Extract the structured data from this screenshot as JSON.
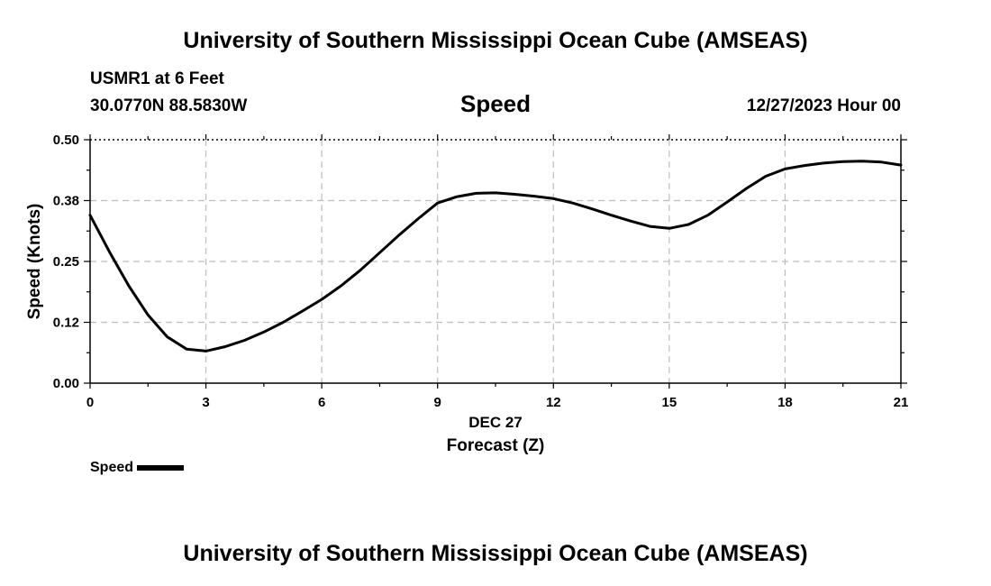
{
  "header": {
    "main_title": "University of Southern Mississippi Ocean Cube (AMSEAS)",
    "station": "USMR1 at 6 Feet",
    "coords": "30.0770N  88.5830W",
    "variable": "Speed",
    "datetime": "12/27/2023 Hour 00"
  },
  "footer": {
    "title": "University of Southern Mississippi Ocean Cube (AMSEAS)"
  },
  "legend": {
    "label": "Speed",
    "color": "#000000"
  },
  "chart_data": {
    "type": "line",
    "title": "Speed",
    "xlabel": "Forecast (Z)",
    "xlabel_date": "DEC 27",
    "ylabel": "Speed (Knots)",
    "xlim": [
      0,
      21
    ],
    "ylim": [
      0,
      0.5
    ],
    "xticks": [
      0,
      3,
      6,
      9,
      12,
      15,
      18,
      21
    ],
    "xtick_labels": [
      "0",
      "3",
      "6",
      "9",
      "12",
      "15",
      "18",
      "21"
    ],
    "yticks": [
      0,
      0.125,
      0.25,
      0.375,
      0.5
    ],
    "ytick_labels": [
      "0.00",
      "0.12",
      "0.25",
      "0.38",
      "0.50"
    ],
    "grid": true,
    "series": [
      {
        "name": "Speed",
        "color": "#000000",
        "x": [
          0,
          0.5,
          1,
          1.5,
          2,
          2.5,
          3,
          3.5,
          4,
          4.5,
          5,
          5.5,
          6,
          6.5,
          7,
          7.5,
          8,
          8.5,
          9,
          9.5,
          10,
          10.5,
          11,
          11.5,
          12,
          12.5,
          13,
          13.5,
          14,
          14.5,
          15,
          15.5,
          16,
          16.5,
          17,
          17.5,
          18,
          18.5,
          19,
          19.5,
          20,
          20.5,
          21
        ],
        "values": [
          0.345,
          0.27,
          0.2,
          0.14,
          0.095,
          0.07,
          0.066,
          0.075,
          0.088,
          0.105,
          0.125,
          0.148,
          0.172,
          0.2,
          0.232,
          0.268,
          0.304,
          0.338,
          0.37,
          0.383,
          0.39,
          0.391,
          0.388,
          0.384,
          0.379,
          0.37,
          0.358,
          0.345,
          0.333,
          0.322,
          0.318,
          0.326,
          0.345,
          0.372,
          0.4,
          0.425,
          0.44,
          0.447,
          0.452,
          0.455,
          0.456,
          0.454,
          0.448
        ]
      }
    ]
  }
}
